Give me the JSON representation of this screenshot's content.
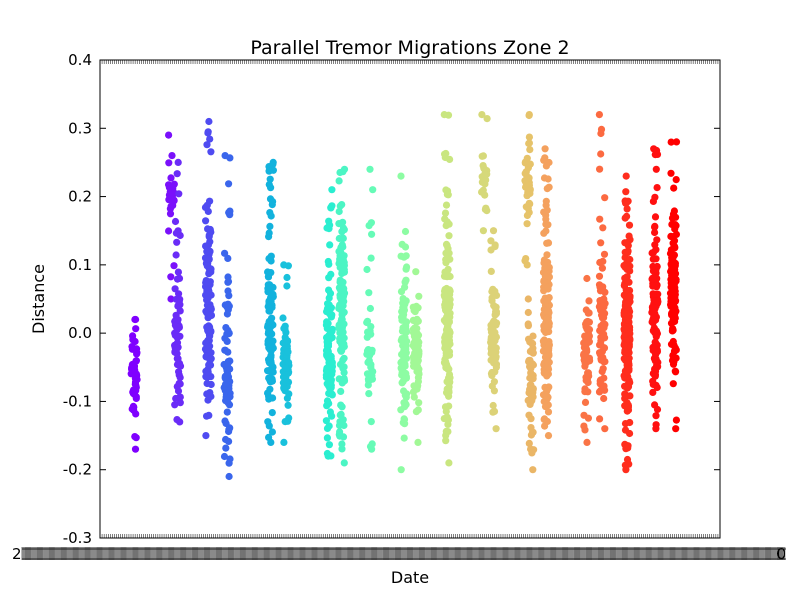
{
  "chart_data": {
    "type": "scatter",
    "title": "Parallel Tremor Migrations Zone 2",
    "xlabel": "Date",
    "ylabel": "Distance",
    "ylim": [
      -0.3,
      0.4
    ],
    "yticks": [
      "-0.3",
      "-0.2",
      "-0.1",
      "0.0",
      "0.1",
      "0.2",
      "0.3",
      "0.4"
    ],
    "x_tick_label_left": "2",
    "x_tick_label_right": "0",
    "grid": false,
    "legend": "none",
    "x_axis_note": "x tick labels are dense and overlapping, unreadable",
    "series": [
      {
        "color": "#7f00ff",
        "x": 0.055,
        "y_center": -0.06,
        "y_spread": 0.055,
        "y_min": -0.17,
        "y_max": 0.02,
        "n": 45
      },
      {
        "color": "#7a10fb",
        "x": 0.115,
        "y_center": 0.21,
        "y_spread": 0.02,
        "y_min": 0.05,
        "y_max": 0.29,
        "n": 30
      },
      {
        "color": "#6a2cf7",
        "x": 0.125,
        "y_center": 0.0,
        "y_spread": 0.09,
        "y_min": -0.13,
        "y_max": 0.25,
        "n": 70
      },
      {
        "color": "#4f4bf1",
        "x": 0.175,
        "y_center": 0.05,
        "y_spread": 0.1,
        "y_min": -0.15,
        "y_max": 0.31,
        "n": 120
      },
      {
        "color": "#3a66ec",
        "x": 0.205,
        "y_center": -0.05,
        "y_spread": 0.07,
        "y_min": -0.21,
        "y_max": 0.26,
        "n": 80
      },
      {
        "color": "#12b2dd",
        "x": 0.275,
        "y_center": 0.0,
        "y_spread": 0.1,
        "y_min": -0.16,
        "y_max": 0.25,
        "n": 110
      },
      {
        "color": "#19c1dc",
        "x": 0.3,
        "y_center": -0.04,
        "y_spread": 0.06,
        "y_min": -0.16,
        "y_max": 0.1,
        "n": 60
      },
      {
        "color": "#2aeed0",
        "x": 0.37,
        "y_center": -0.04,
        "y_spread": 0.07,
        "y_min": -0.18,
        "y_max": 0.21,
        "n": 120
      },
      {
        "color": "#4cf5c4",
        "x": 0.39,
        "y_center": 0.04,
        "y_spread": 0.1,
        "y_min": -0.19,
        "y_max": 0.24,
        "n": 130
      },
      {
        "color": "#66fbb7",
        "x": 0.435,
        "y_center": -0.04,
        "y_spread": 0.08,
        "y_min": -0.17,
        "y_max": 0.24,
        "n": 40
      },
      {
        "color": "#8dfca3",
        "x": 0.49,
        "y_center": -0.02,
        "y_spread": 0.09,
        "y_min": -0.2,
        "y_max": 0.23,
        "n": 90
      },
      {
        "color": "#a2f896",
        "x": 0.51,
        "y_center": -0.03,
        "y_spread": 0.06,
        "y_min": -0.16,
        "y_max": 0.09,
        "n": 70
      },
      {
        "color": "#c9e680",
        "x": 0.56,
        "y_center": 0.0,
        "y_spread": 0.09,
        "y_min": -0.19,
        "y_max": 0.32,
        "n": 160
      },
      {
        "color": "#d6d97a",
        "x": 0.62,
        "y_center": 0.22,
        "y_spread": 0.04,
        "y_min": 0.15,
        "y_max": 0.32,
        "n": 20
      },
      {
        "color": "#dcd278",
        "x": 0.635,
        "y_center": -0.01,
        "y_spread": 0.06,
        "y_min": -0.14,
        "y_max": 0.15,
        "n": 80
      },
      {
        "color": "#e6c36a",
        "x": 0.69,
        "y_center": 0.22,
        "y_spread": 0.04,
        "y_min": 0.1,
        "y_max": 0.32,
        "n": 40
      },
      {
        "color": "#eab667",
        "x": 0.695,
        "y_center": -0.07,
        "y_spread": 0.06,
        "y_min": -0.2,
        "y_max": 0.05,
        "n": 50
      },
      {
        "color": "#f4a15e",
        "x": 0.72,
        "y_center": 0.0,
        "y_spread": 0.1,
        "y_min": -0.15,
        "y_max": 0.27,
        "n": 140
      },
      {
        "color": "#fa7446",
        "x": 0.785,
        "y_center": -0.03,
        "y_spread": 0.05,
        "y_min": -0.16,
        "y_max": 0.08,
        "n": 60
      },
      {
        "color": "#fc6a41",
        "x": 0.81,
        "y_center": 0.0,
        "y_spread": 0.1,
        "y_min": -0.14,
        "y_max": 0.32,
        "n": 70
      },
      {
        "color": "#ff2d1d",
        "x": 0.85,
        "y_center": 0.0,
        "y_spread": 0.08,
        "y_min": -0.2,
        "y_max": 0.23,
        "n": 220
      },
      {
        "color": "#ff1010",
        "x": 0.895,
        "y_center": 0.02,
        "y_spread": 0.08,
        "y_min": -0.14,
        "y_max": 0.27,
        "n": 110
      },
      {
        "color": "#ff0000",
        "x": 0.925,
        "y_center": 0.06,
        "y_spread": 0.09,
        "y_min": -0.14,
        "y_max": 0.28,
        "n": 120
      }
    ]
  }
}
